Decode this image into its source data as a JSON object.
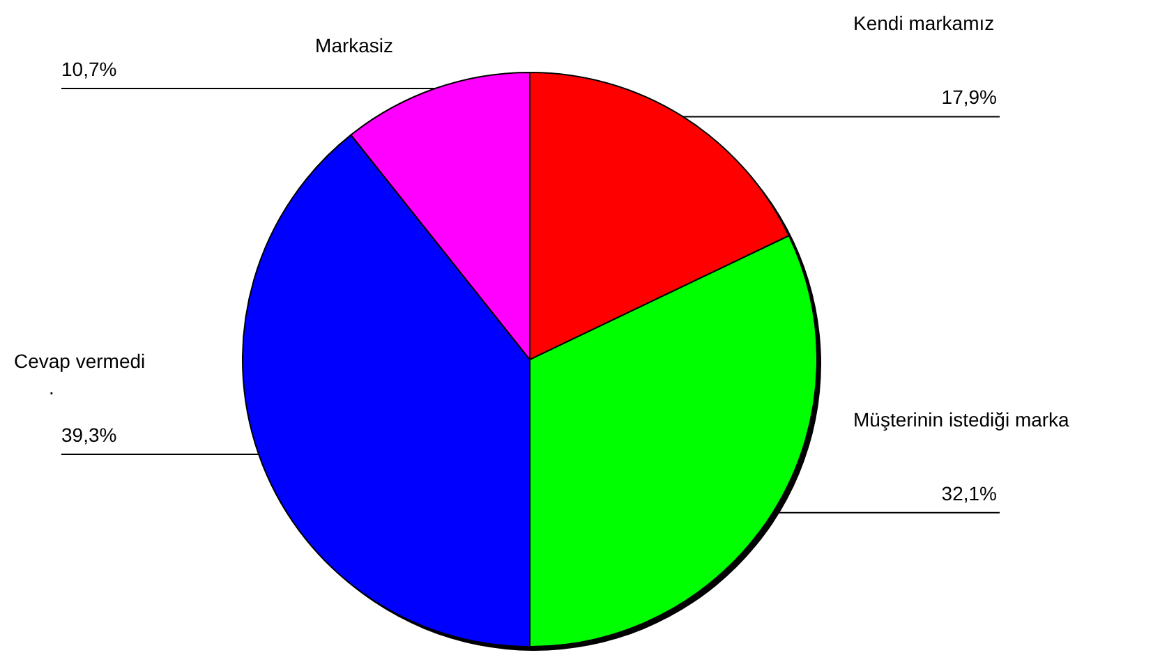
{
  "chart_data": {
    "type": "pie",
    "categories": [
      "Kendi markamız",
      "Müşterinin istediği marka",
      "Cevap vermedi",
      "Markasiz"
    ],
    "values": [
      17.9,
      32.1,
      39.3,
      10.7
    ],
    "value_labels": [
      "17,9%",
      "32,1%",
      "39,3%",
      "10,7%"
    ],
    "colors": [
      "#ff0000",
      "#00ff00",
      "#0000ff",
      "#ff00ff"
    ],
    "annotations": [
      "."
    ]
  }
}
